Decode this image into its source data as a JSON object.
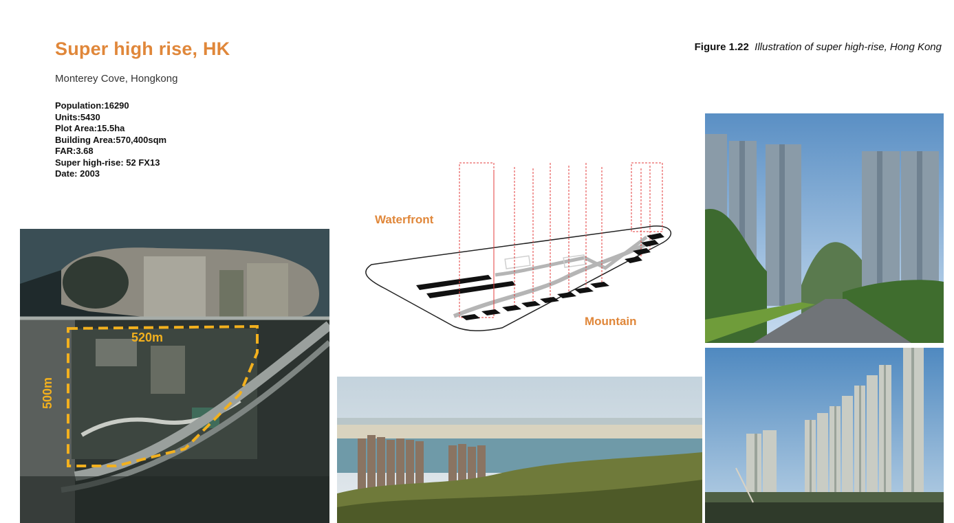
{
  "header": {
    "title": "Super high rise, HK",
    "subtitle": "Monterey Cove, Hongkong",
    "figure_label": "Figure 1.22",
    "figure_caption": "Illustration of super high-rise, Hong Kong"
  },
  "stats": [
    "Population:16290",
    "Units:5430",
    "Plot Area:15.5ha",
    "Building Area:570,400sqm",
    "FAR:3.68",
    "Super high-rise: 52 FX13",
    "Date: 2003"
  ],
  "aerial_map": {
    "width_label": "520m",
    "height_label": "500m"
  },
  "diagram": {
    "waterfront_label": "Waterfront",
    "mountain_label": "Mountain"
  },
  "colors": {
    "accent": "#e0873a",
    "site_outline": "#f2b01e",
    "guide_lines": "#e33b3b"
  }
}
